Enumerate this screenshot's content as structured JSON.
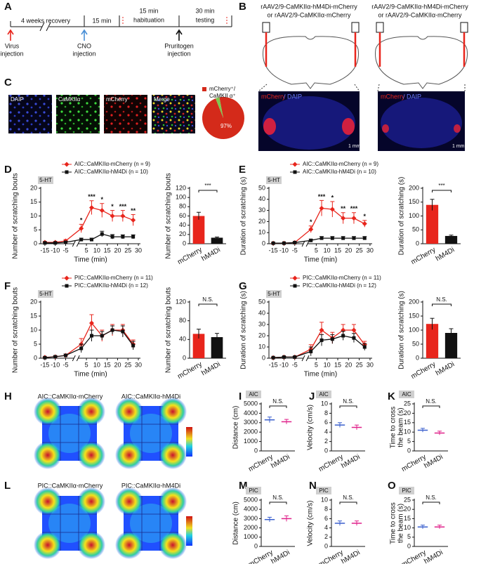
{
  "panel_labels": [
    "A",
    "B",
    "C",
    "D",
    "E",
    "F",
    "G",
    "H",
    "I",
    "J",
    "K",
    "L",
    "M",
    "N",
    "O"
  ],
  "timeline": {
    "segments": [
      [
        "4 weeks recovery"
      ],
      [
        "15 min"
      ],
      [
        "15 min",
        "habituation"
      ],
      [
        "30 min",
        "testing"
      ]
    ],
    "events": [
      [
        "Virus",
        "injection"
      ],
      [
        "CNO",
        "injection"
      ],
      [
        "Pruritogen",
        "injection"
      ]
    ]
  },
  "viral_strategy": {
    "titles": [
      [
        "rAAV2/9-CaMKIIα-hM4Di-mCherry",
        "or rAAV2/9-CaMKIIα-mCherry"
      ],
      [
        "rAAV2/9-CaMKIIα-hM4Di-mCherry",
        "or rAAV2/9-CaMKIIα-mCherry"
      ]
    ],
    "stain_label": [
      "mCherry",
      "/ DAIP"
    ],
    "scale_bar": "1 mm"
  },
  "histology": {
    "channels": [
      "DAIP",
      "CaMKIIα",
      "mCherry",
      "Merge"
    ]
  },
  "heatmaps": [
    {
      "labels": [
        "AIC::CaMKIIα-mCherry",
        "AIC::CaMKIIα-hM4Di"
      ]
    },
    {
      "labels": [
        "PIC::CaMKIIα-mCherry",
        "PIC::CaMKIIα-hM4Di"
      ]
    }
  ],
  "chart_data": [
    {
      "type": "line",
      "stimulus": "5-HT",
      "x": [
        -15,
        -10,
        -5,
        2.5,
        7.5,
        12.5,
        17.5,
        22.5,
        27.5
      ],
      "xlim": [
        -17,
        31
      ],
      "xticks": [
        -15,
        -10,
        -5,
        5,
        10,
        15,
        20,
        25,
        30
      ],
      "ylim": [
        0,
        20
      ],
      "yticks": [
        0,
        5,
        10,
        15,
        20
      ],
      "x_label": "Time (min)",
      "y_label": "Number of scratching bouts",
      "series": [
        {
          "name": "AIC::CaMKIIα-mCherry (n = 9)",
          "color": "#e8251c",
          "values": [
            0.5,
            0.5,
            1,
            5.5,
            13,
            12,
            10,
            10,
            8.5
          ],
          "errors": [
            0.3,
            0.3,
            0.5,
            1.5,
            2.5,
            2.5,
            2,
            2,
            2
          ]
        },
        {
          "name": "AIC::CaMKIIα-hM4Di (n = 10)",
          "color": "#111111",
          "values": [
            0.3,
            0.3,
            0.5,
            1.5,
            1.5,
            3.5,
            2.5,
            2.5,
            2.5
          ],
          "errors": [
            0.2,
            0.2,
            0.3,
            0.5,
            0.5,
            1,
            0.8,
            0.7,
            0.7
          ]
        }
      ],
      "significance": [
        null,
        null,
        null,
        "*",
        "***",
        "*",
        "*",
        "***",
        "**"
      ]
    },
    {
      "type": "bar",
      "categories": [
        "mCherry",
        "hM4Di"
      ],
      "values": [
        60,
        13
      ],
      "errors": [
        8,
        1.5
      ],
      "colors": [
        "#e8251c",
        "#111111"
      ],
      "ylim": [
        0,
        120
      ],
      "yticks": [
        0,
        20,
        40,
        60,
        80,
        100,
        120
      ],
      "y_label": "Number of scratching bouts",
      "significance": "***"
    },
    {
      "type": "line",
      "stimulus": "5-HT",
      "x": [
        -15,
        -10,
        -5,
        2.5,
        7.5,
        12.5,
        17.5,
        22.5,
        27.5
      ],
      "xlim": [
        -17,
        31
      ],
      "xticks": [
        -15,
        -10,
        -5,
        5,
        10,
        15,
        20,
        25,
        30
      ],
      "ylim": [
        0,
        50
      ],
      "yticks": [
        0,
        10,
        20,
        30,
        40,
        50
      ],
      "x_label": "Time (min)",
      "y_label": "Duration of scratching (s)",
      "series": [
        {
          "name": "AIC::CaMKIIα-mCherry (n = 9)",
          "color": "#e8251c",
          "values": [
            0.5,
            0.5,
            1,
            13,
            32,
            31,
            23,
            23,
            18
          ],
          "errors": [
            0.3,
            0.3,
            0.5,
            3,
            7,
            7,
            5,
            5,
            3
          ]
        },
        {
          "name": "AIC::CaMKIIα-hM4Di (n = 10)",
          "color": "#111111",
          "values": [
            0.5,
            0.5,
            1,
            3,
            5,
            5,
            5,
            5,
            5
          ],
          "errors": [
            0.3,
            0.3,
            0.5,
            1,
            1.5,
            1.5,
            1.5,
            1.5,
            1.5
          ]
        }
      ],
      "significance": [
        null,
        null,
        null,
        "*",
        "***",
        "*",
        "**",
        "***",
        "*"
      ]
    },
    {
      "type": "bar",
      "categories": [
        "mCherry",
        "hM4Di"
      ],
      "values": [
        140,
        28
      ],
      "errors": [
        20,
        3
      ],
      "colors": [
        "#e8251c",
        "#111111"
      ],
      "ylim": [
        0,
        200
      ],
      "yticks": [
        0,
        50,
        100,
        150,
        200
      ],
      "y_label": "Duration of scratching (s)",
      "significance": "***"
    },
    {
      "type": "line",
      "stimulus": "5-HT",
      "x": [
        -15,
        -10,
        -5,
        2.5,
        7.5,
        12.5,
        17.5,
        22.5,
        27.5
      ],
      "xlim": [
        -17,
        31
      ],
      "xticks": [
        -15,
        -10,
        -5,
        5,
        10,
        15,
        20,
        25,
        30
      ],
      "ylim": [
        0,
        20
      ],
      "yticks": [
        0,
        5,
        10,
        15,
        20
      ],
      "x_label": "Time (min)",
      "y_label": "Number of scratching bouts",
      "series": [
        {
          "name": "PIC::CaMKIIα-mCherry (n = 11)",
          "color": "#e8251c",
          "values": [
            0.3,
            0.5,
            1,
            5,
            12.5,
            8,
            10,
            10,
            5
          ],
          "errors": [
            0.2,
            0.3,
            0.5,
            2,
            3,
            2,
            2,
            2,
            1.5
          ]
        },
        {
          "name": "PIC::CaMKIIα-hM4Di (n = 12)",
          "color": "#111111",
          "values": [
            0.2,
            0.5,
            1,
            3.5,
            8,
            8,
            10,
            9.5,
            4.5
          ],
          "errors": [
            0.2,
            0.3,
            0.5,
            1.5,
            2,
            1.5,
            1.5,
            2,
            1.5
          ]
        }
      ],
      "significance": [
        null,
        null,
        null,
        null,
        null,
        null,
        null,
        null,
        null
      ]
    },
    {
      "type": "bar",
      "categories": [
        "mCherry",
        "hM4Di"
      ],
      "values": [
        52,
        45
      ],
      "errors": [
        10,
        8
      ],
      "colors": [
        "#e8251c",
        "#111111"
      ],
      "ylim": [
        0,
        120
      ],
      "yticks": [
        0,
        40,
        80,
        120
      ],
      "y_label": "Number of scratching bouts",
      "significance": "N.S."
    },
    {
      "type": "line",
      "stimulus": "5-HT",
      "x": [
        -15,
        -10,
        -5,
        2.5,
        7.5,
        12.5,
        17.5,
        22.5,
        27.5
      ],
      "xlim": [
        -17,
        31
      ],
      "xticks": [
        -15,
        -10,
        -5,
        5,
        10,
        15,
        20,
        25,
        30
      ],
      "ylim": [
        0,
        50
      ],
      "yticks": [
        0,
        10,
        20,
        30,
        40,
        50
      ],
      "x_label": "Time (min)",
      "y_label": "Duration of scratching (s)",
      "series": [
        {
          "name": "PIC::CaMKIIα-mCherry (n = 11)",
          "color": "#e8251c",
          "values": [
            0.5,
            1,
            1,
            8,
            25,
            18,
            25,
            25,
            12
          ],
          "errors": [
            0.3,
            0.5,
            0.5,
            4,
            7,
            5,
            5,
            5,
            3
          ]
        },
        {
          "name": "PIC::CaMKIIα-hM4Di (n = 12)",
          "color": "#111111",
          "values": [
            0.5,
            1,
            1,
            6,
            16,
            17,
            20,
            18,
            10
          ],
          "errors": [
            0.3,
            0.5,
            0.5,
            4,
            5,
            4,
            4,
            4,
            3
          ]
        }
      ],
      "significance": [
        null,
        null,
        null,
        null,
        null,
        null,
        null,
        null,
        null
      ]
    },
    {
      "type": "bar",
      "categories": [
        "mCherry",
        "hM4Di"
      ],
      "values": [
        122,
        90
      ],
      "errors": [
        20,
        15
      ],
      "colors": [
        "#e8251c",
        "#111111"
      ],
      "ylim": [
        0,
        200
      ],
      "yticks": [
        0,
        50,
        100,
        150,
        200
      ],
      "y_label": "Duration of scratching (s)",
      "significance": "N.S."
    },
    {
      "type": "dot",
      "badge": "AIC",
      "categories": [
        "mCherry",
        "hM4Di"
      ],
      "values": [
        3300,
        3100
      ],
      "errors": [
        300,
        250
      ],
      "colors": [
        "#3a5fcd",
        "#e0218a"
      ],
      "ylim": [
        0,
        5000
      ],
      "yticks": [
        0,
        1000,
        2000,
        3000,
        4000,
        5000
      ],
      "y_label": "Distance (cm)",
      "significance": "N.S."
    },
    {
      "type": "dot",
      "badge": "AIC",
      "categories": [
        "mCherry",
        "hM4Di"
      ],
      "values": [
        5.5,
        5.0
      ],
      "errors": [
        0.5,
        0.5
      ],
      "colors": [
        "#3a5fcd",
        "#e0218a"
      ],
      "ylim": [
        0,
        10
      ],
      "yticks": [
        0,
        2,
        4,
        6,
        8,
        10
      ],
      "y_label": "Velocity (cm/s)",
      "significance": "N.S."
    },
    {
      "type": "dot",
      "badge": "AIC",
      "categories": [
        "mCherry",
        "hM4Di"
      ],
      "values": [
        11,
        9.5
      ],
      "errors": [
        1,
        1
      ],
      "colors": [
        "#3a5fcd",
        "#e0218a"
      ],
      "ylim": [
        0,
        25
      ],
      "yticks": [
        0,
        5,
        10,
        15,
        20,
        25
      ],
      "y_label": [
        "Time to cross",
        "the beam (s)"
      ],
      "significance": "N.S."
    },
    {
      "type": "dot",
      "badge": "PIC",
      "categories": [
        "mCherry",
        "hM4Di"
      ],
      "values": [
        2900,
        3000
      ],
      "errors": [
        250,
        300
      ],
      "colors": [
        "#3a5fcd",
        "#e0218a"
      ],
      "ylim": [
        0,
        5000
      ],
      "yticks": [
        0,
        1000,
        2000,
        3000,
        4000,
        5000
      ],
      "y_label": "Distance (cm)",
      "significance": "N.S."
    },
    {
      "type": "dot",
      "badge": "PIC",
      "categories": [
        "mCherry",
        "hM4Di"
      ],
      "values": [
        5.0,
        5.0
      ],
      "errors": [
        0.5,
        0.5
      ],
      "colors": [
        "#3a5fcd",
        "#e0218a"
      ],
      "ylim": [
        0,
        10
      ],
      "yticks": [
        0,
        2,
        4,
        6,
        8,
        10
      ],
      "y_label": "Velocity (cm/s)",
      "significance": "N.S."
    },
    {
      "type": "dot",
      "badge": "PIC",
      "categories": [
        "mCherry",
        "hM4Di"
      ],
      "values": [
        10.5,
        10.5
      ],
      "errors": [
        1,
        1
      ],
      "colors": [
        "#3a5fcd",
        "#e0218a"
      ],
      "ylim": [
        0,
        25
      ],
      "yticks": [
        0,
        5,
        10,
        15,
        20,
        25
      ],
      "y_label": [
        "Time to cross",
        "the beam (s)"
      ],
      "significance": "N.S."
    },
    {
      "type": "pie",
      "values": [
        97,
        3
      ],
      "value_labels": [
        "97%",
        null
      ],
      "colors": [
        "#d42a1a",
        "#7ec850"
      ],
      "legend_label": [
        "mCherry⁺/",
        "CaMKII α⁺"
      ]
    }
  ]
}
